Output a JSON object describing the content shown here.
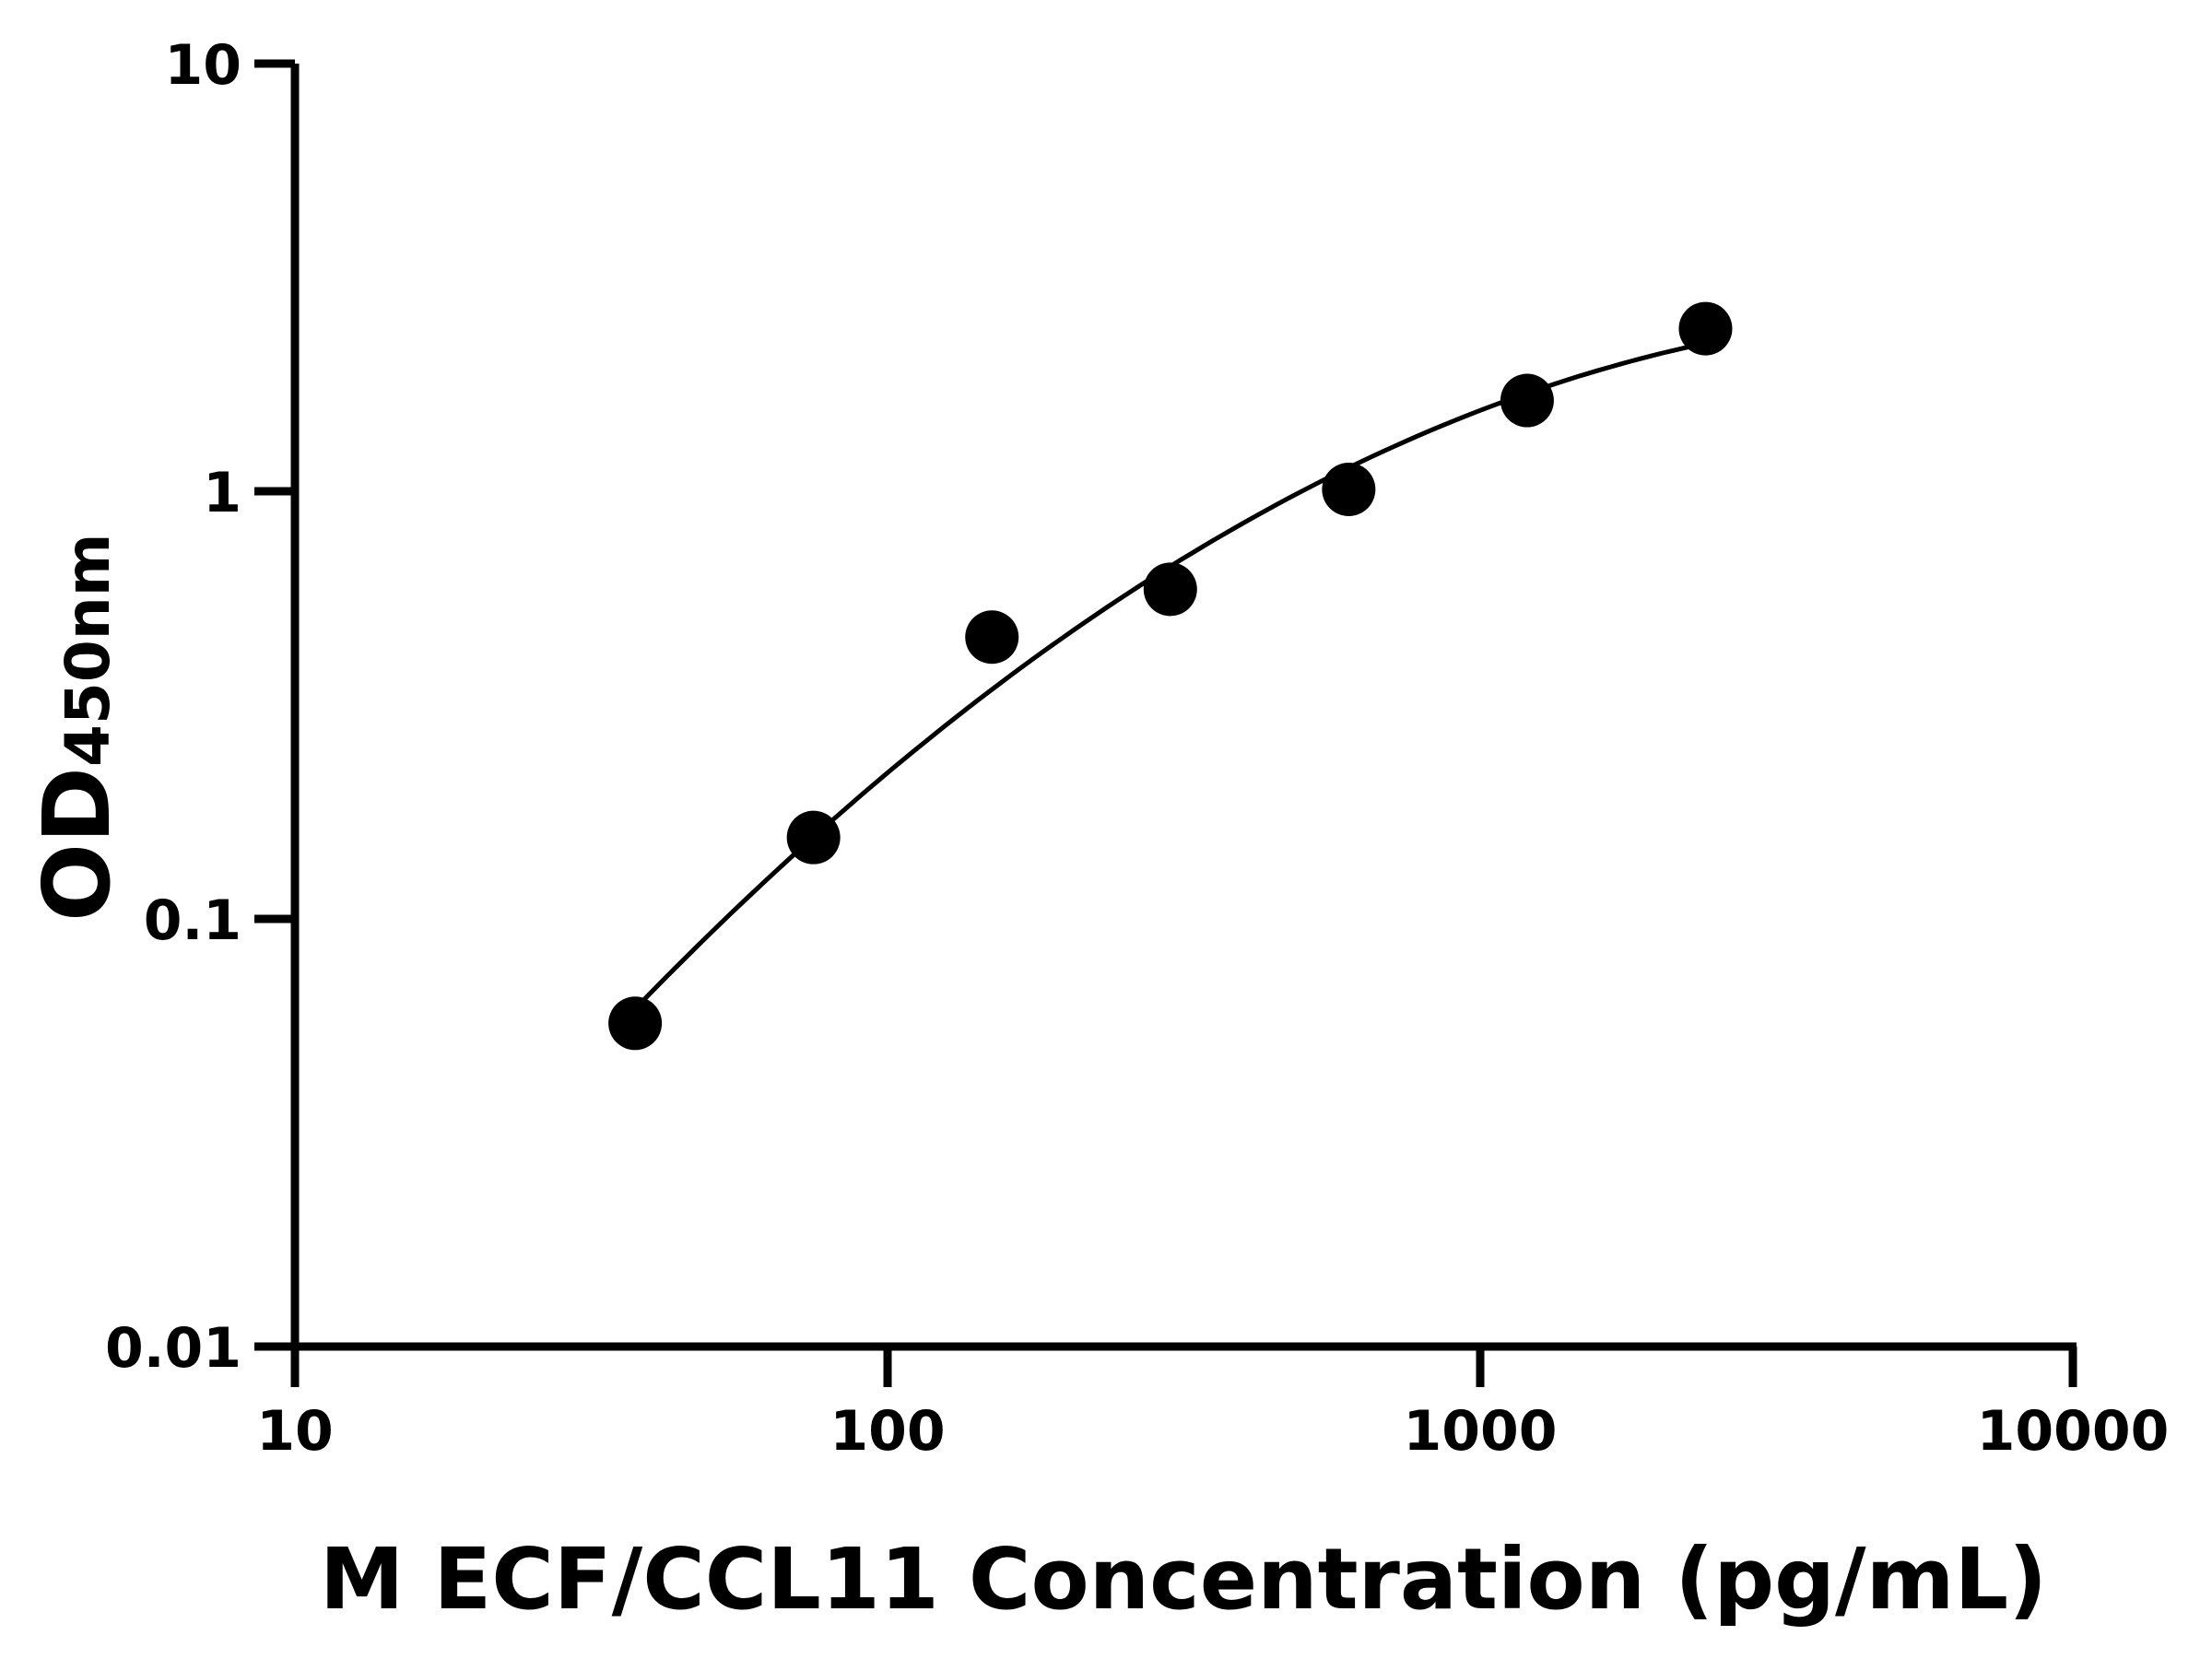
{
  "chart_data": {
    "type": "scatter",
    "xlabel": "M ECF/CCL11 Concentration (pg/mL)",
    "ylabel_main": "OD",
    "ylabel_sub": "450nm",
    "x_scale": "log",
    "y_scale": "log",
    "xlim": [
      10,
      10000
    ],
    "ylim": [
      0.01,
      10
    ],
    "x_ticks": [
      "10",
      "100",
      "1000",
      "10000"
    ],
    "y_ticks": [
      "0.01",
      "0.1",
      "1",
      "10"
    ],
    "grid": false,
    "fit_curve": true,
    "points": [
      {
        "x": 37.5,
        "y": 0.057
      },
      {
        "x": 75,
        "y": 0.155
      },
      {
        "x": 150,
        "y": 0.456
      },
      {
        "x": 300,
        "y": 0.59
      },
      {
        "x": 600,
        "y": 1.01
      },
      {
        "x": 1200,
        "y": 1.63
      },
      {
        "x": 2400,
        "y": 2.4
      }
    ],
    "color": "#000000"
  }
}
